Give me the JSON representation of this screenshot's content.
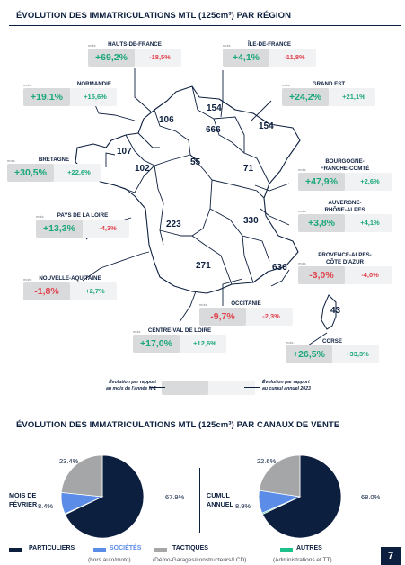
{
  "colors": {
    "navy": "#0d1f3f",
    "positive": "#1aa878",
    "negative": "#e0434f",
    "blue": "#5b8ce8",
    "grey": "#a4a6a8",
    "green": "#1cc08a"
  },
  "section1": {
    "title": "ÉVOLUTION DES IMMATRICULATIONS MTL (125cm³) PAR RÉGION"
  },
  "small_label": "mois",
  "regions": [
    {
      "name": "HAUTS-DE-FRANCE",
      "monthly": "+69,2%",
      "cumul": "-18,5%",
      "value": "106"
    },
    {
      "name": "ÎLE-DE-FRANCE",
      "monthly": "+4,1%",
      "cumul": "-11,8%",
      "value": "666"
    },
    {
      "name": "NORMANDIE",
      "monthly": "+19,1%",
      "cumul": "+15,6%",
      "value": "154"
    },
    {
      "name": "GRAND EST",
      "monthly": "+24,2%",
      "cumul": "+21,1%",
      "value": "154"
    },
    {
      "name": "BRETAGNE",
      "monthly": "+30,5%",
      "cumul": "+22,6%",
      "value": "107"
    },
    {
      "name": "BOURGOGNE-\nFRANCHE-COMTÉ",
      "monthly": "+47,9%",
      "cumul": "+2,6%",
      "value": "71"
    },
    {
      "name": "PAYS DE LA LOIRE",
      "monthly": "+13,3%",
      "cumul": "-4,3%",
      "value": "102"
    },
    {
      "name": "AUVERGNE-\nRHÔNE-ALPES",
      "monthly": "+3,8%",
      "cumul": "+4,1%",
      "value": "330"
    },
    {
      "name": "NOUVELLE-AQUITAINE",
      "monthly": "-1,8%",
      "cumul": "+2,7%",
      "value": "223"
    },
    {
      "name": "PROVENCE-ALPES-\nCÔTE D'AZUR",
      "monthly": "-3,0%",
      "cumul": "-4,0%",
      "value": "636"
    },
    {
      "name": "OCCITANIE",
      "monthly": "-9,7%",
      "cumul": "-2,3%",
      "value": "271"
    },
    {
      "name": "CENTRE-VAL DE LOIRE",
      "monthly": "+17,0%",
      "cumul": "+12,6%",
      "value": "55"
    },
    {
      "name": "CORSE",
      "monthly": "+26,5%",
      "cumul": "+33,3%",
      "value": "43"
    }
  ],
  "map_legend": {
    "left": "Évolution par rapport\nau mois de l'année N-1",
    "right": "Évolution par rapport\nau cumul annuel 2023"
  },
  "section2": {
    "title": "ÉVOLUTION DES IMMATRICULATIONS MTL (125cm³) PAR CANAUX DE VENTE"
  },
  "chart_data": [
    {
      "type": "pie",
      "title": "MOIS DE FÉVRIER",
      "categories": [
        "PARTICULIERS",
        "SOCIÉTÉS",
        "TACTIQUES",
        "AUTRES"
      ],
      "values": [
        67.9,
        8.4,
        23.4,
        0.3
      ],
      "labels": [
        "67.9%",
        "8.4%",
        "23.4%",
        ""
      ]
    },
    {
      "type": "pie",
      "title": "CUMUL ANNUEL",
      "categories": [
        "PARTICULIERS",
        "SOCIÉTÉS",
        "TACTIQUES",
        "AUTRES"
      ],
      "values": [
        68.0,
        8.9,
        22.6,
        0.5
      ],
      "labels": [
        "68.0%",
        "8.9%",
        "22.6%",
        ""
      ]
    }
  ],
  "pie_titles": {
    "left": "MOIS DE\nFÉVRIER",
    "right": "CUMUL\nANNUEL"
  },
  "legend": [
    {
      "label": "PARTICULIERS",
      "sub": "",
      "color": "#0d1f3f"
    },
    {
      "label": "SOCIÉTÉS",
      "sub": "(hors auto/moto)",
      "color": "#5b8ce8"
    },
    {
      "label": "TACTIQUES",
      "sub": "(Démo-Garages/constructeurs/LCD)",
      "color": "#a4a6a8"
    },
    {
      "label": "AUTRES",
      "sub": "(Administrations et TT)",
      "color": "#1cc08a"
    }
  ],
  "page_number": "7"
}
